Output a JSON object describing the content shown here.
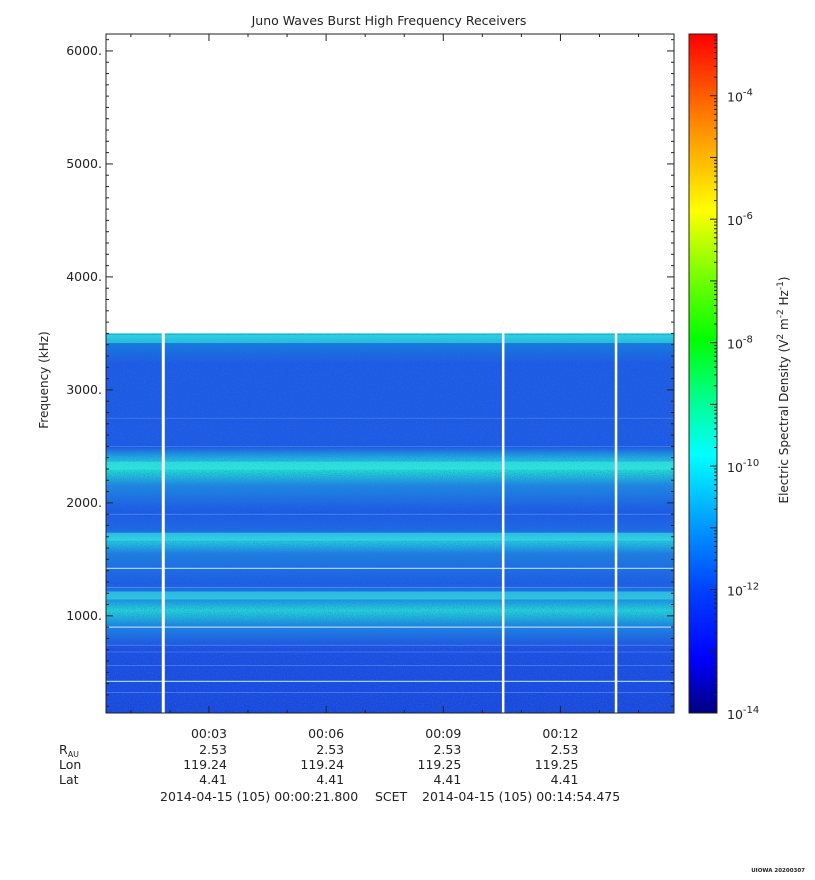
{
  "chart_data": {
    "type": "heatmap",
    "title": "Juno Waves Burst High Frequency Receivers",
    "ylabel": "Frequency (kHz)",
    "ylim": [
      140,
      6150
    ],
    "yticks": [
      "1000.",
      "2000.",
      "3000.",
      "4000.",
      "5000.",
      "6000."
    ],
    "ytick_values": [
      1000,
      2000,
      3000,
      4000,
      5000,
      6000
    ],
    "xlim_minutes": [
      0.3633,
      14.9079
    ],
    "xticks": [
      "00:03",
      "00:06",
      "00:09",
      "00:12"
    ],
    "xtick_minutes": [
      3,
      6,
      9,
      12
    ],
    "data_upper_frequency_khz": 3500,
    "data_gaps_minutes": [
      1.83,
      10.54,
      13.43
    ],
    "emission_bands": [
      {
        "frequency_khz": 3450,
        "level": "strong"
      },
      {
        "frequency_khz": 2330,
        "level": "strong"
      },
      {
        "frequency_khz": 1700,
        "level": "strong"
      },
      {
        "frequency_khz": 1180,
        "level": "strong"
      }
    ],
    "colorbar": {
      "label": "Electric Spectral Density (V² m⁻² Hz⁻¹)",
      "scale": "log",
      "range": [
        1e-14,
        0.001
      ],
      "tick_labels": [
        "10-14",
        "10-12",
        "10-10",
        "10-8",
        "10-6",
        "10-4"
      ],
      "tick_exponents": [
        -14,
        -12,
        -10,
        -8,
        -6,
        -4
      ],
      "colormap": [
        "#000080",
        "#0000ff",
        "#0080ff",
        "#00ffff",
        "#00ff80",
        "#00ff00",
        "#80ff00",
        "#ffff00",
        "#ff8000",
        "#ff0000"
      ]
    },
    "grid": false
  },
  "ephemeris": {
    "rows": [
      {
        "label": "R",
        "sub": "AU",
        "values": [
          "2.53",
          "2.53",
          "2.53",
          "2.53"
        ]
      },
      {
        "label": "Lon",
        "sub": "",
        "values": [
          "119.24",
          "119.24",
          "119.25",
          "119.25"
        ]
      },
      {
        "label": "Lat",
        "sub": "",
        "values": [
          "4.41",
          "4.41",
          "4.41",
          "4.41"
        ]
      }
    ]
  },
  "footer": {
    "start": "2014-04-15 (105) 00:00:21.800",
    "mid": "SCET",
    "end": "2014-04-15 (105) 00:14:54.475"
  },
  "stamp": "UIOWA 20200307"
}
